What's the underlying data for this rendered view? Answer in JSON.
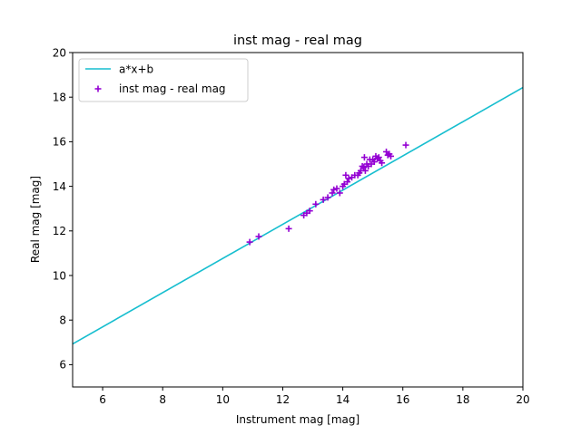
{
  "chart_data": {
    "type": "scatter",
    "title": "inst mag - real mag",
    "xlabel": "Instrument mag [mag]",
    "ylabel": "Real mag [mag]",
    "xlim": [
      5,
      20
    ],
    "ylim": [
      5,
      20
    ],
    "xticks": [
      6,
      8,
      10,
      12,
      14,
      16,
      18,
      20
    ],
    "yticks": [
      6,
      8,
      10,
      12,
      14,
      16,
      18,
      20
    ],
    "grid": false,
    "legend_position": "top-left",
    "series": [
      {
        "name": "a*x+b",
        "kind": "line",
        "color": "#17becf",
        "x": [
          5,
          20
        ],
        "y": [
          6.93,
          18.43
        ]
      },
      {
        "name": "inst mag - real mag",
        "kind": "scatter",
        "marker": "plus",
        "color": "#9400d3",
        "x": [
          10.9,
          11.2,
          12.2,
          12.7,
          12.8,
          12.9,
          13.1,
          13.35,
          13.5,
          13.65,
          13.7,
          13.8,
          13.9,
          14.0,
          14.05,
          14.1,
          14.15,
          14.2,
          14.3,
          14.4,
          14.5,
          14.55,
          14.6,
          14.65,
          14.7,
          14.72,
          14.75,
          14.8,
          14.85,
          14.9,
          14.95,
          15.0,
          15.05,
          15.1,
          15.15,
          15.2,
          15.25,
          15.3,
          15.45,
          15.5,
          15.55,
          15.6,
          16.1
        ],
        "y": [
          11.5,
          11.75,
          12.1,
          12.7,
          12.8,
          12.9,
          13.2,
          13.4,
          13.5,
          13.7,
          13.85,
          13.9,
          13.7,
          14.0,
          14.1,
          14.5,
          14.2,
          14.35,
          14.4,
          14.5,
          14.5,
          14.6,
          14.7,
          14.9,
          14.85,
          15.3,
          14.7,
          15.0,
          14.9,
          15.2,
          15.0,
          15.2,
          15.1,
          15.35,
          15.25,
          15.3,
          15.15,
          15.05,
          15.55,
          15.4,
          15.45,
          15.35,
          15.85
        ]
      }
    ]
  }
}
